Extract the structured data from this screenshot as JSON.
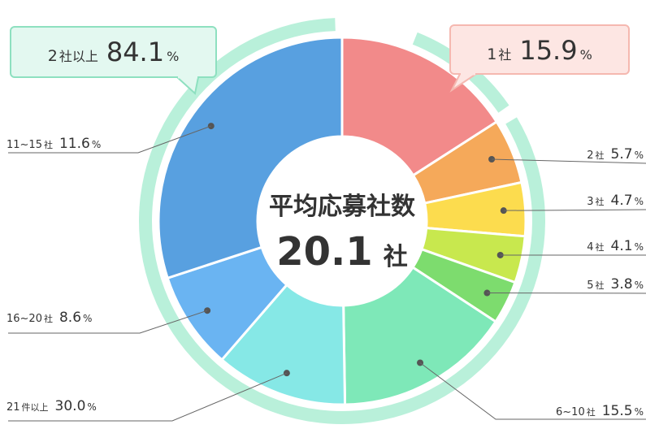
{
  "chart_data": {
    "type": "pie",
    "center": {
      "title": "平均応募社数",
      "value": "20.1",
      "unit": "社"
    },
    "groups": [
      {
        "label_main": "1",
        "label_unit": "社",
        "value": 15.9,
        "value_text": "15.9",
        "unit": "%",
        "color": "#f28a8a",
        "fill": "#fde6e3",
        "border": "#f5b8b0"
      },
      {
        "label_main": "2",
        "label_unit": "社以上",
        "value": 84.1,
        "value_text": "84.1",
        "unit": "%",
        "color": "#b9f0da",
        "fill": "#e3f8f0",
        "border": "#8ee0c0"
      }
    ],
    "slices": [
      {
        "label_main": "1",
        "label_unit": "社",
        "value": 15.9,
        "value_text": "15.9",
        "color": "#f28a8a"
      },
      {
        "label_main": "2",
        "label_unit": "社",
        "value": 5.7,
        "value_text": "5.7",
        "color": "#f5a95a"
      },
      {
        "label_main": "3",
        "label_unit": "社",
        "value": 4.7,
        "value_text": "4.7",
        "color": "#fcdc4e"
      },
      {
        "label_main": "4",
        "label_unit": "社",
        "value": 4.1,
        "value_text": "4.1",
        "color": "#c8e84e"
      },
      {
        "label_main": "5",
        "label_unit": "社",
        "value": 3.8,
        "value_text": "3.8",
        "color": "#7ddc6e"
      },
      {
        "label_main": "6~10",
        "label_unit": "社",
        "value": 15.5,
        "value_text": "15.5",
        "color": "#7ee8b8"
      },
      {
        "label_main": "11~15",
        "label_unit": "社",
        "value": 11.6,
        "value_text": "11.6",
        "color": "#86e8e6"
      },
      {
        "label_main": "16~20",
        "label_unit": "社",
        "value": 8.6,
        "value_text": "8.6",
        "color": "#6ab4f2"
      },
      {
        "label_main": "21",
        "label_unit": "件以上",
        "value": 30.0,
        "value_text": "30.0",
        "color": "#58a0e0"
      }
    ],
    "unit": "%"
  }
}
